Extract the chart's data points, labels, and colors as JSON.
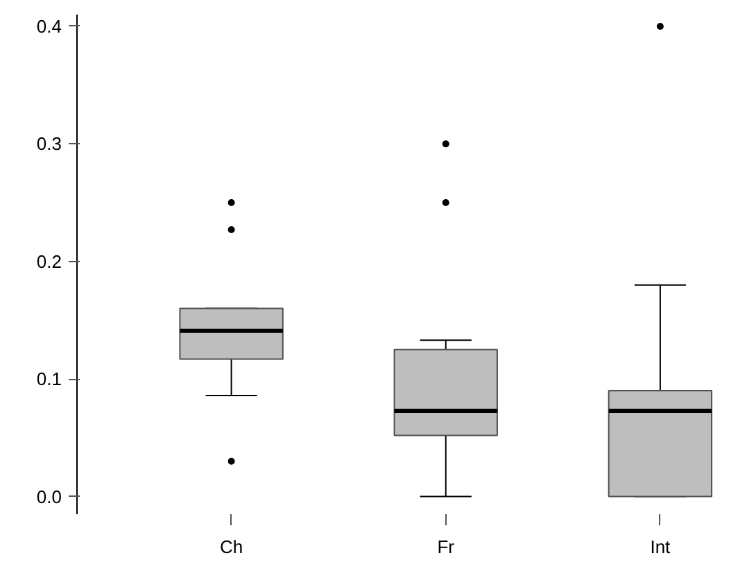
{
  "chart_data": {
    "type": "box",
    "categories": [
      "Ch",
      "Fr",
      "Int"
    ],
    "color": "#bebebe",
    "ylim": [
      -0.015,
      0.41
    ],
    "yticks": [
      {
        "value": 0,
        "label": "0.0"
      },
      0.1,
      0.2,
      0.3,
      0.4
    ],
    "grid": false,
    "boxes": [
      {
        "low": 0.086,
        "q1": 0.117,
        "median": 0.141,
        "q3": 0.16,
        "high": 0.16,
        "outliers": [
          0.25,
          0.227,
          0.03
        ]
      },
      {
        "low": 0,
        "q1": 0.052,
        "median": 0.073,
        "q3": 0.125,
        "high": 0.133,
        "outliers": [
          0.3,
          0.25
        ]
      },
      {
        "low": 0,
        "q1": 0,
        "median": 0.073,
        "q3": 0.09,
        "high": 0.18,
        "outliers": [
          0.4
        ]
      }
    ]
  }
}
